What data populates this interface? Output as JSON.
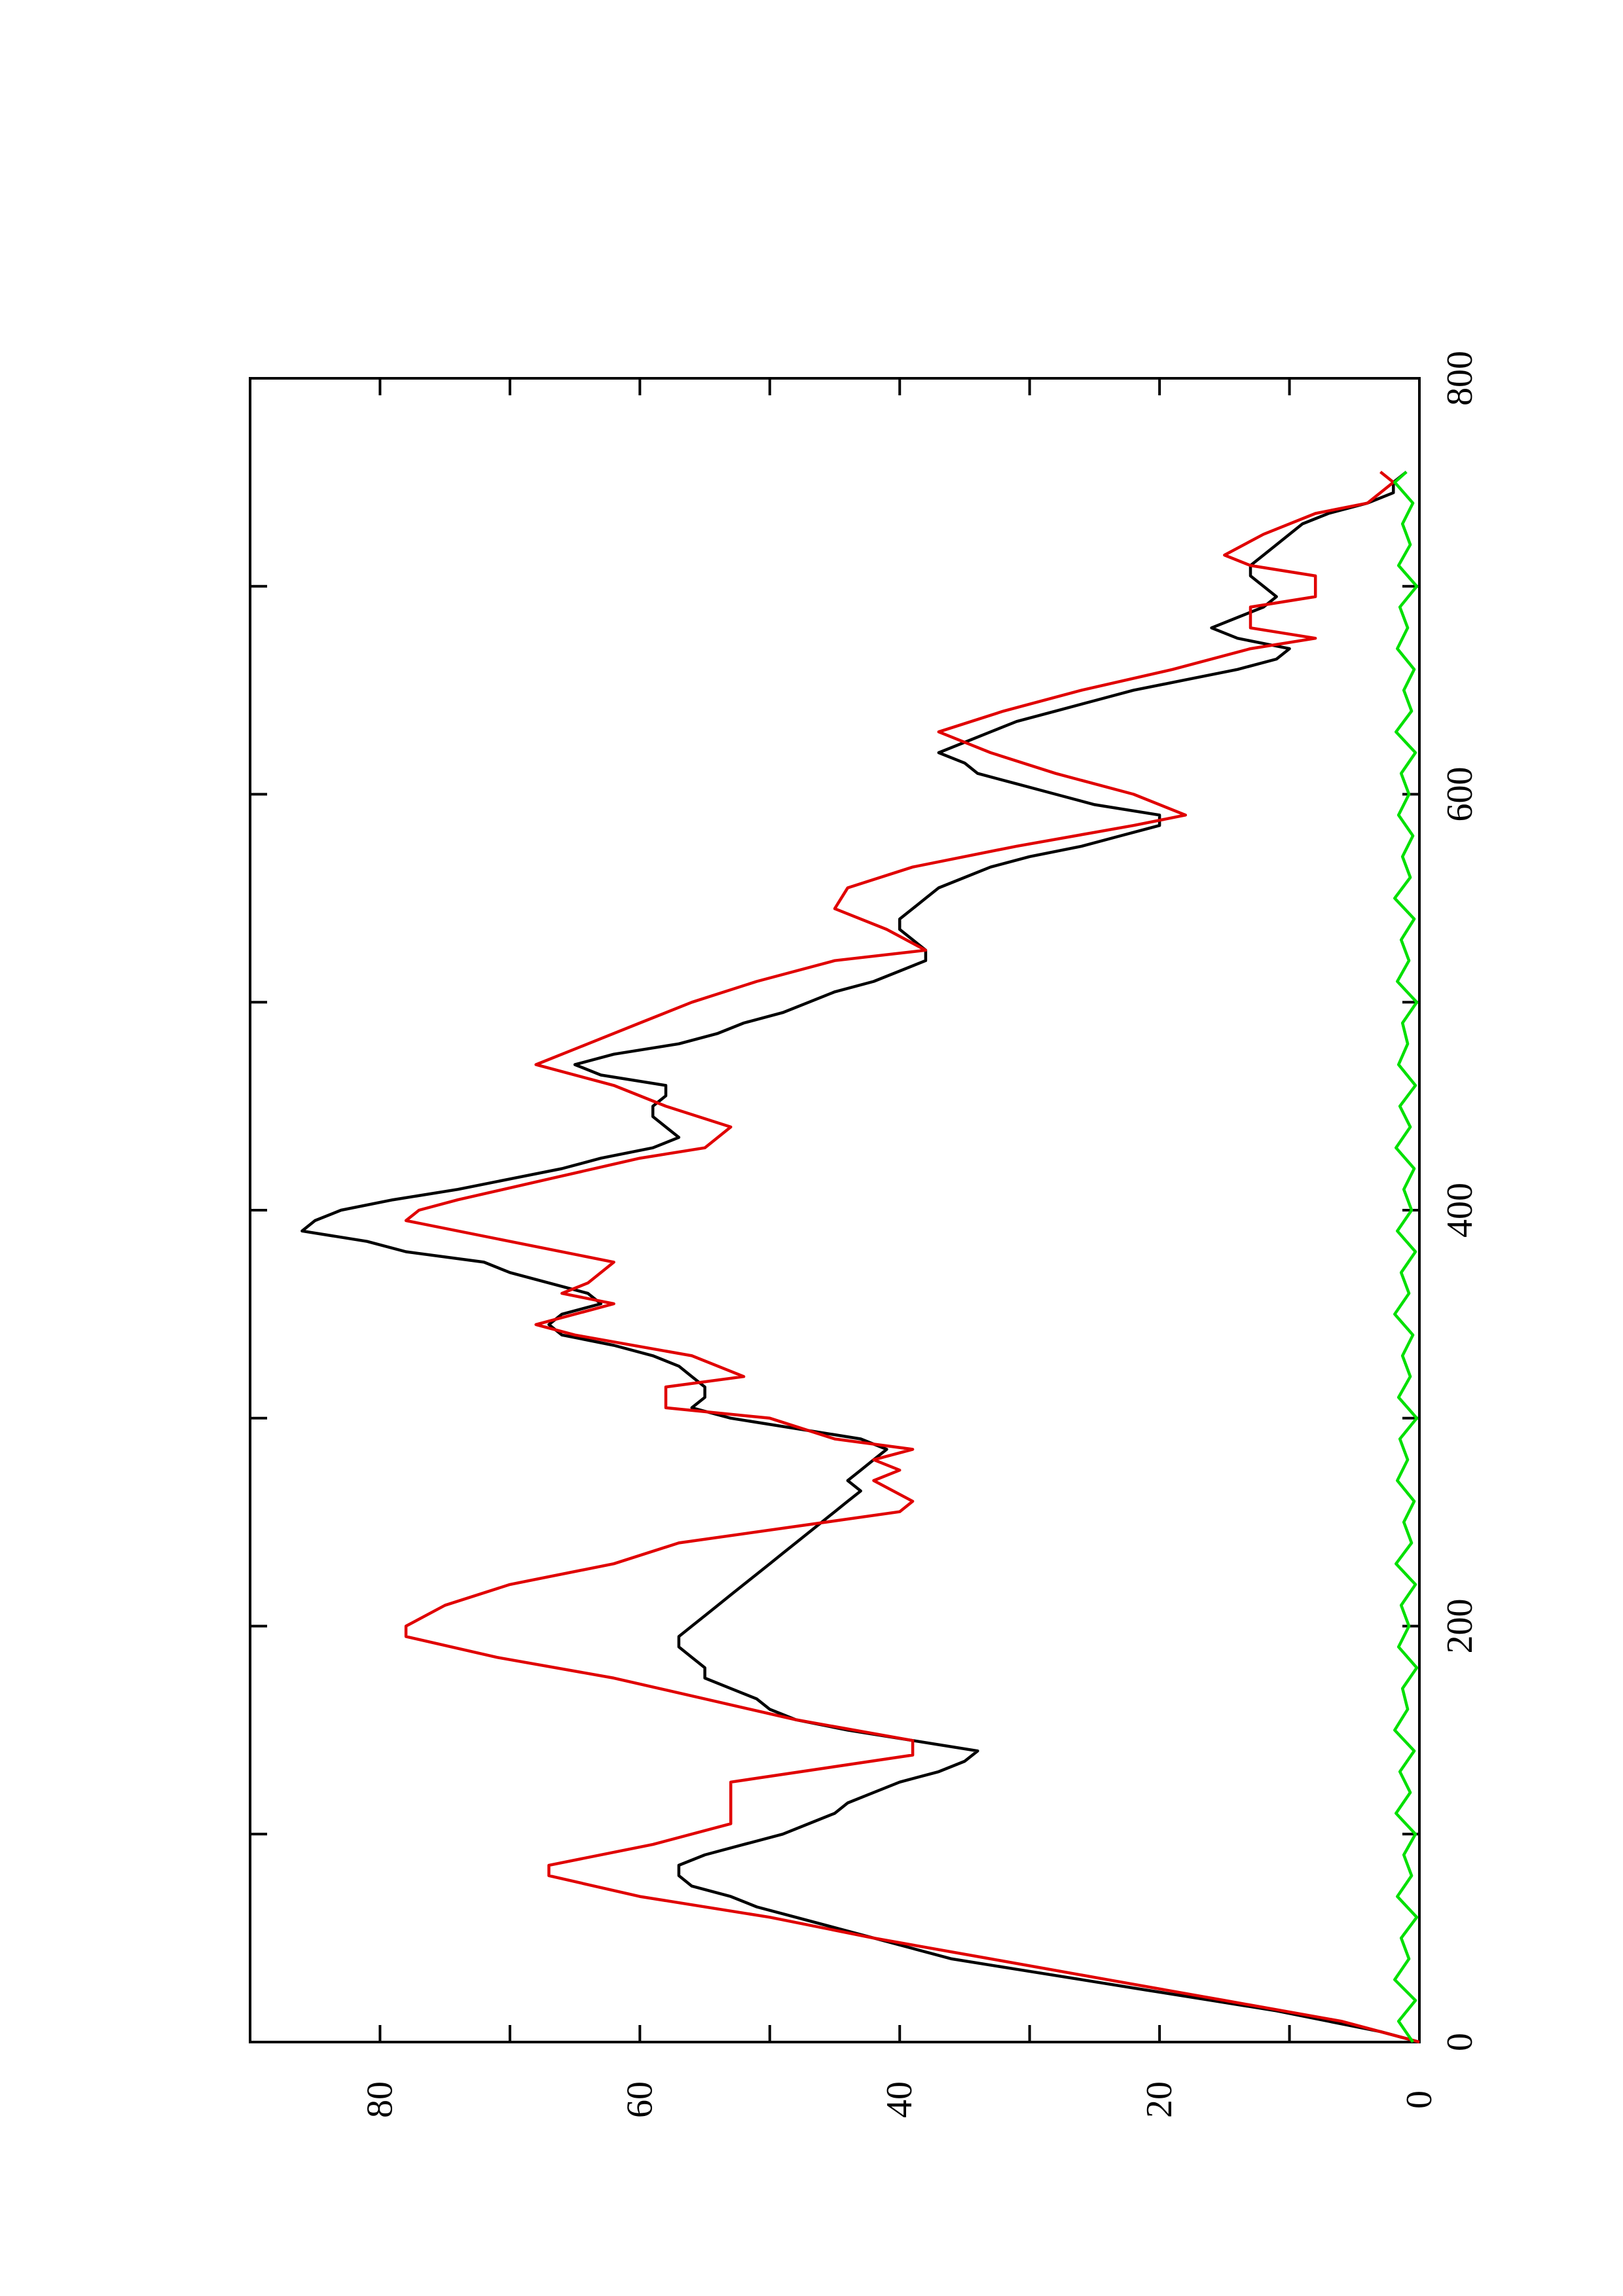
{
  "chart_data": {
    "type": "line",
    "orientation": "rotated-90-ccw",
    "xlim": [
      0,
      800
    ],
    "ylim": [
      0,
      90
    ],
    "x_ticks": [
      "0",
      "200",
      "400",
      "600",
      "800"
    ],
    "y_ticks": [
      "0",
      "20",
      "40",
      "60",
      "80"
    ],
    "grid": false,
    "series": [
      {
        "color": "#000000",
        "points": [
          [
            0,
            0
          ],
          [
            5,
            3
          ],
          [
            10,
            7
          ],
          [
            15,
            11
          ],
          [
            20,
            16
          ],
          [
            25,
            21
          ],
          [
            30,
            26
          ],
          [
            35,
            31
          ],
          [
            40,
            36
          ],
          [
            45,
            39
          ],
          [
            50,
            42
          ],
          [
            55,
            45
          ],
          [
            60,
            48
          ],
          [
            65,
            51
          ],
          [
            70,
            53
          ],
          [
            75,
            56
          ],
          [
            80,
            57
          ],
          [
            85,
            57
          ],
          [
            90,
            55
          ],
          [
            95,
            52
          ],
          [
            100,
            49
          ],
          [
            105,
            47
          ],
          [
            110,
            45
          ],
          [
            115,
            44
          ],
          [
            120,
            42
          ],
          [
            125,
            40
          ],
          [
            130,
            37
          ],
          [
            135,
            35
          ],
          [
            140,
            34
          ],
          [
            145,
            39
          ],
          [
            150,
            44
          ],
          [
            155,
            48
          ],
          [
            160,
            50
          ],
          [
            165,
            51
          ],
          [
            170,
            53
          ],
          [
            175,
            55
          ],
          [
            180,
            55
          ],
          [
            185,
            56
          ],
          [
            190,
            57
          ],
          [
            195,
            57
          ],
          [
            200,
            56
          ],
          [
            205,
            55
          ],
          [
            210,
            54
          ],
          [
            215,
            53
          ],
          [
            220,
            52
          ],
          [
            225,
            51
          ],
          [
            230,
            50
          ],
          [
            235,
            49
          ],
          [
            240,
            48
          ],
          [
            245,
            47
          ],
          [
            250,
            46
          ],
          [
            255,
            45
          ],
          [
            260,
            44
          ],
          [
            265,
            43
          ],
          [
            270,
            44
          ],
          [
            275,
            43
          ],
          [
            280,
            42
          ],
          [
            285,
            41
          ],
          [
            290,
            43
          ],
          [
            295,
            48
          ],
          [
            300,
            53
          ],
          [
            305,
            56
          ],
          [
            310,
            55
          ],
          [
            315,
            55
          ],
          [
            320,
            56
          ],
          [
            325,
            57
          ],
          [
            330,
            59
          ],
          [
            335,
            62
          ],
          [
            340,
            66
          ],
          [
            345,
            67
          ],
          [
            350,
            66
          ],
          [
            355,
            63
          ],
          [
            360,
            64
          ],
          [
            365,
            67
          ],
          [
            370,
            70
          ],
          [
            375,
            72
          ],
          [
            380,
            78
          ],
          [
            385,
            81
          ],
          [
            390,
            86
          ],
          [
            395,
            85
          ],
          [
            400,
            83
          ],
          [
            405,
            79
          ],
          [
            410,
            74
          ],
          [
            415,
            70
          ],
          [
            420,
            66
          ],
          [
            425,
            63
          ],
          [
            430,
            59
          ],
          [
            435,
            57
          ],
          [
            440,
            58
          ],
          [
            445,
            59
          ],
          [
            450,
            59
          ],
          [
            455,
            58
          ],
          [
            460,
            58
          ],
          [
            465,
            63
          ],
          [
            470,
            65
          ],
          [
            475,
            62
          ],
          [
            480,
            57
          ],
          [
            485,
            54
          ],
          [
            490,
            52
          ],
          [
            495,
            49
          ],
          [
            500,
            47
          ],
          [
            505,
            45
          ],
          [
            510,
            42
          ],
          [
            515,
            40
          ],
          [
            520,
            38
          ],
          [
            525,
            38
          ],
          [
            530,
            39
          ],
          [
            535,
            40
          ],
          [
            540,
            40
          ],
          [
            545,
            39
          ],
          [
            550,
            38
          ],
          [
            555,
            37
          ],
          [
            560,
            35
          ],
          [
            565,
            33
          ],
          [
            570,
            30
          ],
          [
            575,
            26
          ],
          [
            580,
            23
          ],
          [
            585,
            20
          ],
          [
            590,
            20
          ],
          [
            595,
            25
          ],
          [
            600,
            28
          ],
          [
            605,
            31
          ],
          [
            610,
            34
          ],
          [
            615,
            35
          ],
          [
            620,
            37
          ],
          [
            625,
            35
          ],
          [
            630,
            33
          ],
          [
            635,
            31
          ],
          [
            640,
            28
          ],
          [
            645,
            25
          ],
          [
            650,
            22
          ],
          [
            655,
            18
          ],
          [
            660,
            14
          ],
          [
            665,
            11
          ],
          [
            670,
            10
          ],
          [
            675,
            14
          ],
          [
            680,
            16
          ],
          [
            685,
            14
          ],
          [
            690,
            12
          ],
          [
            695,
            11
          ],
          [
            700,
            12
          ],
          [
            705,
            13
          ],
          [
            710,
            13
          ],
          [
            715,
            12
          ],
          [
            720,
            11
          ],
          [
            725,
            10
          ],
          [
            730,
            9
          ],
          [
            735,
            7
          ],
          [
            740,
            4
          ],
          [
            745,
            2
          ],
          [
            750,
            2
          ],
          [
            755,
            1
          ]
        ]
      },
      {
        "color": "#e00000",
        "points": [
          [
            0,
            0
          ],
          [
            10,
            6
          ],
          [
            20,
            15
          ],
          [
            30,
            24
          ],
          [
            40,
            33
          ],
          [
            50,
            42
          ],
          [
            60,
            50
          ],
          [
            70,
            60
          ],
          [
            80,
            67
          ],
          [
            85,
            67
          ],
          [
            95,
            59
          ],
          [
            105,
            53
          ],
          [
            125,
            53
          ],
          [
            138,
            39
          ],
          [
            145,
            39
          ],
          [
            155,
            48
          ],
          [
            165,
            55
          ],
          [
            175,
            62
          ],
          [
            185,
            71
          ],
          [
            195,
            78
          ],
          [
            200,
            78
          ],
          [
            210,
            75
          ],
          [
            220,
            70
          ],
          [
            230,
            62
          ],
          [
            240,
            57
          ],
          [
            255,
            40
          ],
          [
            260,
            39
          ],
          [
            270,
            42
          ],
          [
            275,
            40
          ],
          [
            280,
            42
          ],
          [
            285,
            39
          ],
          [
            290,
            45
          ],
          [
            300,
            50
          ],
          [
            305,
            58
          ],
          [
            315,
            58
          ],
          [
            320,
            52
          ],
          [
            330,
            56
          ],
          [
            340,
            65
          ],
          [
            345,
            68
          ],
          [
            355,
            62
          ],
          [
            360,
            66
          ],
          [
            365,
            64
          ],
          [
            375,
            62
          ],
          [
            385,
            70
          ],
          [
            395,
            78
          ],
          [
            400,
            77
          ],
          [
            405,
            74
          ],
          [
            415,
            67
          ],
          [
            425,
            60
          ],
          [
            430,
            55
          ],
          [
            440,
            53
          ],
          [
            450,
            58
          ],
          [
            460,
            62
          ],
          [
            470,
            68
          ],
          [
            480,
            64
          ],
          [
            490,
            60
          ],
          [
            500,
            56
          ],
          [
            510,
            51
          ],
          [
            520,
            45
          ],
          [
            525,
            38
          ],
          [
            535,
            41
          ],
          [
            545,
            45
          ],
          [
            555,
            44
          ],
          [
            565,
            39
          ],
          [
            575,
            31
          ],
          [
            585,
            22
          ],
          [
            590,
            18
          ],
          [
            600,
            22
          ],
          [
            610,
            28
          ],
          [
            620,
            33
          ],
          [
            630,
            37
          ],
          [
            640,
            32
          ],
          [
            650,
            26
          ],
          [
            660,
            19
          ],
          [
            670,
            13
          ],
          [
            675,
            8
          ],
          [
            680,
            13
          ],
          [
            690,
            13
          ],
          [
            695,
            8
          ],
          [
            705,
            8
          ],
          [
            710,
            13
          ],
          [
            715,
            15
          ],
          [
            725,
            12
          ],
          [
            735,
            8
          ],
          [
            740,
            4
          ],
          [
            745,
            3
          ],
          [
            750,
            2
          ],
          [
            755,
            3
          ]
        ]
      },
      {
        "color": "#00e000",
        "points": [
          [
            0,
            0.5
          ],
          [
            10,
            1.6
          ],
          [
            20,
            0.3
          ],
          [
            30,
            1.9
          ],
          [
            40,
            0.8
          ],
          [
            50,
            1.4
          ],
          [
            60,
            0.2
          ],
          [
            70,
            1.7
          ],
          [
            80,
            0.6
          ],
          [
            90,
            1.2
          ],
          [
            100,
            0.3
          ],
          [
            110,
            1.8
          ],
          [
            120,
            0.7
          ],
          [
            130,
            1.5
          ],
          [
            140,
            0.4
          ],
          [
            150,
            1.9
          ],
          [
            160,
            0.9
          ],
          [
            170,
            1.3
          ],
          [
            180,
            0.2
          ],
          [
            190,
            1.6
          ],
          [
            200,
            0.8
          ],
          [
            210,
            1.4
          ],
          [
            220,
            0.3
          ],
          [
            230,
            1.8
          ],
          [
            240,
            0.6
          ],
          [
            250,
            1.2
          ],
          [
            260,
            0.4
          ],
          [
            270,
            1.7
          ],
          [
            280,
            0.9
          ],
          [
            290,
            1.5
          ],
          [
            300,
            0.2
          ],
          [
            310,
            1.6
          ],
          [
            320,
            0.7
          ],
          [
            330,
            1.3
          ],
          [
            340,
            0.5
          ],
          [
            350,
            1.9
          ],
          [
            360,
            0.8
          ],
          [
            370,
            1.4
          ],
          [
            380,
            0.3
          ],
          [
            390,
            1.7
          ],
          [
            400,
            0.6
          ],
          [
            410,
            1.2
          ],
          [
            420,
            0.4
          ],
          [
            430,
            1.8
          ],
          [
            440,
            0.7
          ],
          [
            450,
            1.5
          ],
          [
            460,
            0.3
          ],
          [
            470,
            1.6
          ],
          [
            480,
            0.9
          ],
          [
            490,
            1.3
          ],
          [
            500,
            0.2
          ],
          [
            510,
            1.7
          ],
          [
            520,
            0.8
          ],
          [
            530,
            1.4
          ],
          [
            540,
            0.4
          ],
          [
            550,
            1.9
          ],
          [
            560,
            0.7
          ],
          [
            570,
            1.3
          ],
          [
            580,
            0.5
          ],
          [
            590,
            1.6
          ],
          [
            600,
            0.8
          ],
          [
            610,
            1.4
          ],
          [
            620,
            0.3
          ],
          [
            630,
            1.8
          ],
          [
            640,
            0.6
          ],
          [
            650,
            1.2
          ],
          [
            660,
            0.4
          ],
          [
            670,
            1.7
          ],
          [
            680,
            0.9
          ],
          [
            690,
            1.5
          ],
          [
            700,
            0.2
          ],
          [
            710,
            1.6
          ],
          [
            720,
            0.7
          ],
          [
            730,
            1.3
          ],
          [
            740,
            0.5
          ],
          [
            750,
            1.9
          ],
          [
            755,
            1.0
          ]
        ]
      }
    ]
  }
}
